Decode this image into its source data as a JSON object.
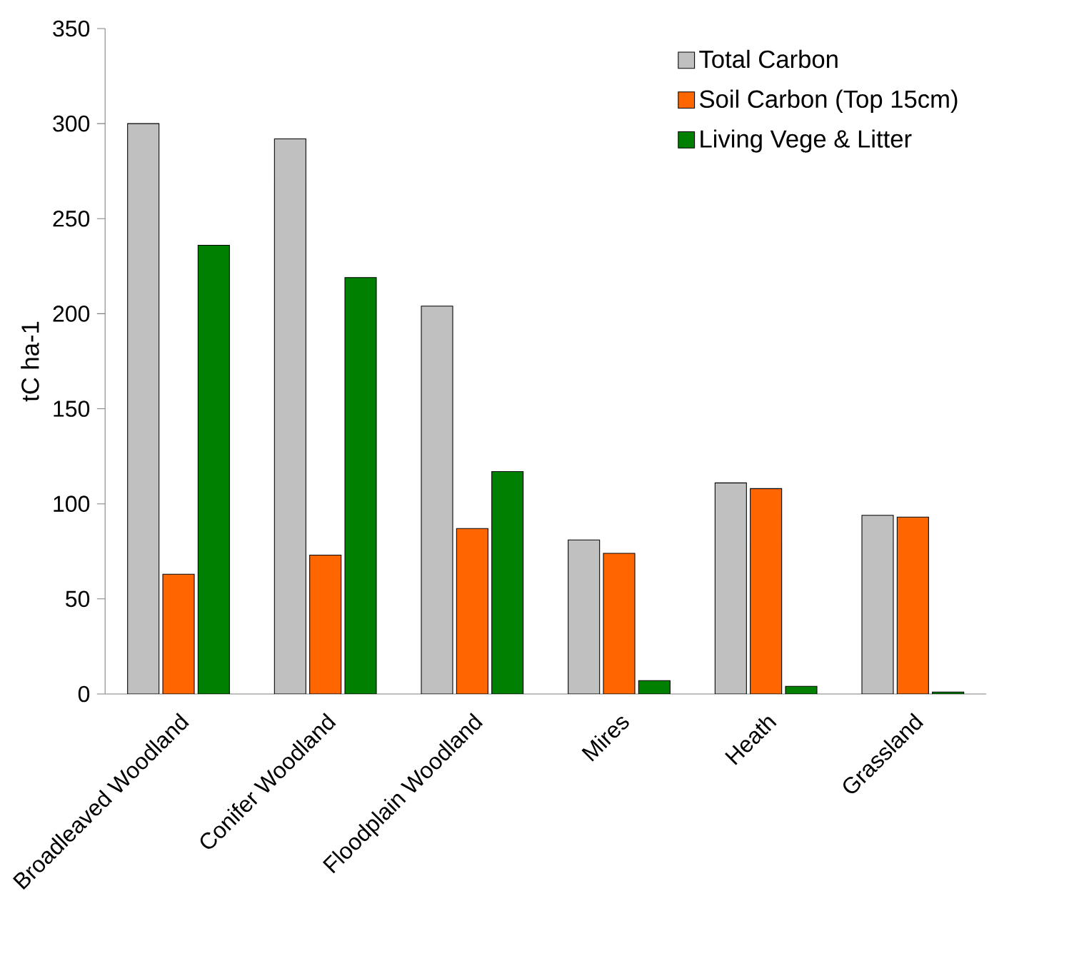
{
  "chart_data": {
    "type": "bar",
    "ylabel": "tC ha-1",
    "categories": [
      "Broadleaved Woodland",
      "Conifer Woodland",
      "Floodplain Woodland",
      "Mires",
      "Heath",
      "Grassland"
    ],
    "series": [
      {
        "name": "Total Carbon",
        "color": "#c0c0c0",
        "values": [
          300,
          292,
          204,
          81,
          111,
          94
        ]
      },
      {
        "name": "Soil Carbon (Top 15cm)",
        "color": "#ff6600",
        "values": [
          63,
          73,
          87,
          74,
          108,
          93
        ]
      },
      {
        "name": "Living Vege & Litter",
        "color": "#008000",
        "values": [
          236,
          219,
          117,
          7,
          4,
          1
        ]
      }
    ],
    "ylim": [
      0,
      350
    ],
    "yticks": [
      0,
      50,
      100,
      150,
      200,
      250,
      300,
      350
    ],
    "legend": "top right"
  }
}
